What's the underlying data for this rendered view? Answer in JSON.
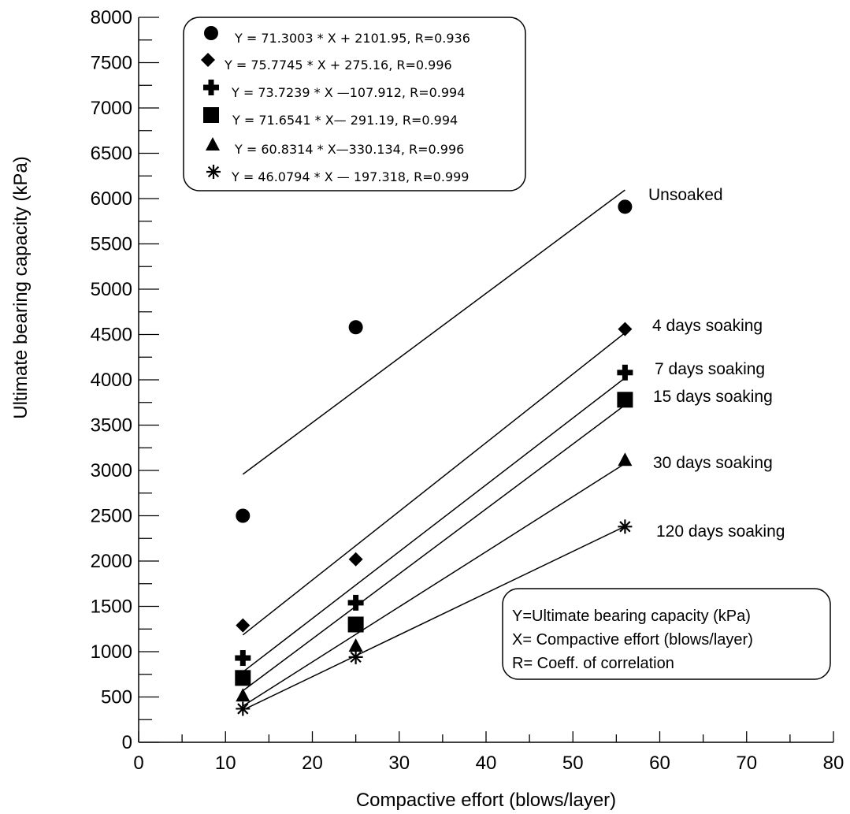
{
  "chart_data": {
    "type": "scatter",
    "title": "",
    "xlabel": "Compactive effort (blows/layer)",
    "ylabel": "Ultimate bearing capacity (kPa)",
    "xlim": [
      0,
      80
    ],
    "ylim": [
      0,
      8000
    ],
    "x_ticks": [
      "0",
      "10",
      "20",
      "30",
      "40",
      "50",
      "60",
      "70",
      "80"
    ],
    "y_ticks": [
      "0",
      "500",
      "1000",
      "1500",
      "2000",
      "2500",
      "3000",
      "3500",
      "4000",
      "4500",
      "5000",
      "5500",
      "6000",
      "6500",
      "7000",
      "7500",
      "8000"
    ],
    "grid": false,
    "legend_position": "top-left",
    "series": [
      {
        "name": "Unsoaked",
        "marker": "circle",
        "equation": "Y = 71.3003 * X + 2101.95, R=0.936",
        "slope": 71.3003,
        "intercept": 2101.95,
        "fit_x": [
          12,
          56
        ],
        "points": [
          {
            "x": 12,
            "y": 2500
          },
          {
            "x": 25,
            "y": 4580
          },
          {
            "x": 56,
            "y": 5910
          }
        ]
      },
      {
        "name": "4 days soaking",
        "marker": "diamond",
        "equation": "Y = 75.7745 * X + 275.16, R=0.996",
        "slope": 75.7745,
        "intercept": 275.16,
        "fit_x": [
          12,
          56
        ],
        "points": [
          {
            "x": 12,
            "y": 1290
          },
          {
            "x": 25,
            "y": 2020
          },
          {
            "x": 56,
            "y": 4560
          }
        ]
      },
      {
        "name": "7 days soaking",
        "marker": "plus",
        "equation": "Y = 73.7239 * X —107.912, R=0.994",
        "slope": 73.7239,
        "intercept": -107.912,
        "fit_x": [
          12,
          56
        ],
        "points": [
          {
            "x": 12,
            "y": 930
          },
          {
            "x": 25,
            "y": 1540
          },
          {
            "x": 56,
            "y": 4080
          }
        ]
      },
      {
        "name": "15 days soaking",
        "marker": "square",
        "equation": "Y = 71.6541 * X— 291.19, R=0.994",
        "slope": 71.6541,
        "intercept": -291.19,
        "fit_x": [
          12,
          56
        ],
        "points": [
          {
            "x": 12,
            "y": 710
          },
          {
            "x": 25,
            "y": 1300
          },
          {
            "x": 56,
            "y": 3780
          }
        ]
      },
      {
        "name": "30 days soaking",
        "marker": "triangle",
        "equation": "Y = 60.8314 * X—330.134, R=0.996",
        "slope": 60.8314,
        "intercept": -330.134,
        "fit_x": [
          12,
          56
        ],
        "points": [
          {
            "x": 12,
            "y": 520
          },
          {
            "x": 25,
            "y": 1070
          },
          {
            "x": 56,
            "y": 3120
          }
        ]
      },
      {
        "name": "120 days soaking",
        "marker": "asterisk",
        "equation": "Y = 46.0794 * X — 197.318, R=0.999",
        "slope": 46.0794,
        "intercept": -197.318,
        "fit_x": [
          12,
          56
        ],
        "points": [
          {
            "x": 12,
            "y": 370
          },
          {
            "x": 25,
            "y": 940
          },
          {
            "x": 56,
            "y": 2380
          }
        ]
      }
    ],
    "note_box": [
      "Y=Ultimate bearing capacity (kPa)",
      "X= Compactive effort (blows/layer)",
      "R= Coeff. of correlation"
    ]
  }
}
